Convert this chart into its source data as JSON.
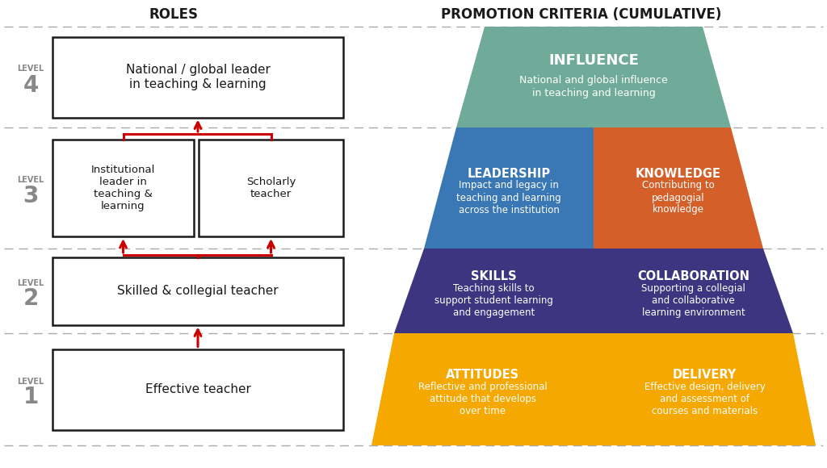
{
  "title_left": "ROLES",
  "title_right": "PROMOTION CRITERIA (CUMULATIVE)",
  "background_color": "#ffffff",
  "pyramid_levels": [
    {
      "level": 1,
      "left_color": "#F5A800",
      "right_color": "#F5A800",
      "left_title": "ATTITUDES",
      "left_body": "Reflective and professional\nattitude that develops\nover time",
      "right_title": "DELIVERY",
      "right_body": "Effective design, delivery\nand assessment of\ncourses and materials"
    },
    {
      "level": 2,
      "left_color": "#3D3580",
      "right_color": "#3D3580",
      "left_title": "SKILLS",
      "left_body": "Teaching skills to\nsupport student learning\nand engagement",
      "right_title": "COLLABORATION",
      "right_body": "Supporting a collegial\nand collaborative\nlearning environment"
    },
    {
      "level": 3,
      "left_color": "#3A78B5",
      "right_color": "#D45F28",
      "left_title": "LEADERSHIP",
      "left_body": "Impact and legacy in\nteaching and learning\nacross the institution",
      "right_title": "KNOWLEDGE",
      "right_body": "Contributing to\npedagogial\nknowledge"
    },
    {
      "level": 4,
      "color": "#6FAB98",
      "title": "INFLUENCE",
      "body": "National and global influence\nin teaching and learning"
    }
  ],
  "arrow_color": "#CC0000",
  "dashed_line_color": "#aaaaaa",
  "box_border_color": "#1a1a1a",
  "text_color_dark": "#1a1a1a",
  "text_color_white": "#ffffff",
  "level_text_color": "#888888"
}
